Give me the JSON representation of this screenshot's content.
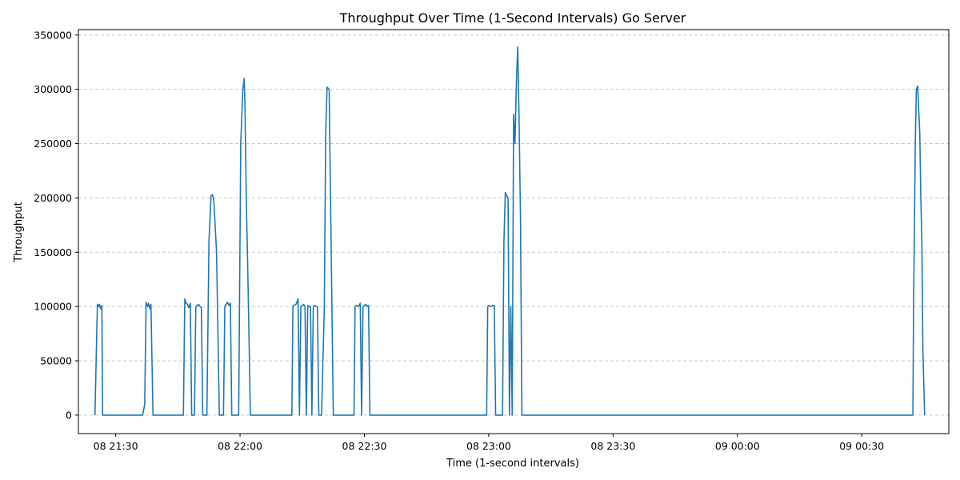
{
  "chart_data": {
    "type": "line",
    "title": "Throughput Over Time (1-Second Intervals) Go Server",
    "xlabel": "Time (1-second intervals)",
    "ylabel": "Throughput",
    "xlim": [
      "08 21:21",
      "09 00:51"
    ],
    "ylim": [
      -17000,
      355000
    ],
    "x_ticks": [
      "08 21:30",
      "08 22:00",
      "08 22:30",
      "08 23:00",
      "08 23:30",
      "09 00:00",
      "09 00:30"
    ],
    "y_ticks": [
      0,
      50000,
      100000,
      150000,
      200000,
      250000,
      300000,
      350000
    ],
    "grid": "y-dashed",
    "series": [
      {
        "color": "#1f77b4",
        "x": [
          "08 21:25:00",
          "08 21:25:20",
          "08 21:25:35",
          "08 21:25:50",
          "08 21:26:05",
          "08 21:26:20",
          "08 21:26:40",
          "08 21:26:50",
          "08 21:27:00",
          "08 21:36:30",
          "08 21:37:00",
          "08 21:37:20",
          "08 21:37:40",
          "08 21:37:55",
          "08 21:38:15",
          "08 21:38:30",
          "08 21:39:00",
          "08 21:46:00",
          "08 21:46:20",
          "08 21:46:40",
          "08 21:47:00",
          "08 21:47:20",
          "08 21:47:40",
          "08 21:48:00",
          "08 21:48:20",
          "08 21:49:00",
          "08 21:49:20",
          "08 21:49:40",
          "08 21:50:00",
          "08 21:50:20",
          "08 21:50:40",
          "08 21:51:00",
          "08 21:52:00",
          "08 21:52:30",
          "08 21:53:00",
          "08 21:53:20",
          "08 21:53:40",
          "08 21:54:20",
          "08 21:55:00",
          "08 21:56:00",
          "08 21:56:20",
          "08 21:56:40",
          "08 21:57:00",
          "08 21:57:20",
          "08 21:57:40",
          "08 21:58:00",
          "08 21:59:40",
          "08 22:00:10",
          "08 22:00:40",
          "08 22:01:00",
          "08 22:01:10",
          "08 22:01:30",
          "08 22:01:50",
          "08 22:02:30",
          "08 22:12:30",
          "08 22:12:45",
          "08 22:13:00",
          "08 22:13:30",
          "08 22:14:00",
          "08 22:14:20",
          "08 22:14:40",
          "08 22:15:00",
          "08 22:15:20",
          "08 22:15:40",
          "08 22:16:00",
          "08 22:16:20",
          "08 22:16:40",
          "08 22:17:00",
          "08 22:17:20",
          "08 22:17:40",
          "08 22:18:00",
          "08 22:18:20",
          "08 22:18:40",
          "08 22:19:00",
          "08 22:19:40",
          "08 22:20:20",
          "08 22:20:40",
          "08 22:21:00",
          "08 22:21:30",
          "08 22:22:00",
          "08 22:22:30",
          "08 22:27:30",
          "08 22:27:45",
          "08 22:28:00",
          "08 22:28:30",
          "08 22:29:00",
          "08 22:29:20",
          "08 22:29:40",
          "08 22:30:00",
          "08 22:30:20",
          "08 22:30:40",
          "08 22:31:00",
          "08 22:31:20",
          "08 22:31:40",
          "08 22:59:30",
          "08 22:59:45",
          "08 23:00:00",
          "08 23:00:30",
          "08 23:01:00",
          "08 23:01:20",
          "08 23:01:40",
          "08 23:03:20",
          "08 23:03:40",
          "08 23:04:00",
          "08 23:04:20",
          "08 23:04:40",
          "08 23:05:00",
          "08 23:05:20",
          "08 23:05:40",
          "08 23:06:00",
          "08 23:06:20",
          "08 23:06:40",
          "08 23:07:00",
          "08 23:07:20",
          "08 23:07:40",
          "08 23:08:00",
          "08 23:08:20",
          "08 23:08:40",
          "08 23:09:00",
          "08 23:09:20",
          "09 00:42:20",
          "09 00:42:30",
          "09 00:42:40",
          "09 00:42:55",
          "09 00:43:10",
          "09 00:43:30",
          "09 00:43:45",
          "09 00:44:00",
          "09 00:44:15",
          "09 00:44:30",
          "09 00:44:45",
          "09 00:45:10"
        ],
        "y": [
          0,
          60000,
          102000,
          100000,
          102000,
          98000,
          101000,
          0,
          0,
          0,
          10000,
          104000,
          100000,
          103000,
          98000,
          102000,
          0,
          0,
          0,
          107000,
          103000,
          102000,
          99000,
          103000,
          0,
          0,
          100000,
          101000,
          102000,
          100000,
          99000,
          0,
          0,
          160000,
          202000,
          203000,
          198000,
          150000,
          0,
          0,
          100000,
          102000,
          104000,
          101000,
          103000,
          0,
          0,
          250000,
          300000,
          310000,
          290000,
          200000,
          140000,
          0,
          0,
          100000,
          101000,
          102000,
          107000,
          0,
          100000,
          101000,
          102000,
          100000,
          0,
          101000,
          100000,
          100000,
          0,
          100000,
          101000,
          100000,
          100000,
          0,
          0,
          100000,
          260000,
          302000,
          300000,
          150000,
          0,
          0,
          100000,
          101000,
          100000,
          103000,
          0,
          100000,
          101000,
          102000,
          100000,
          101000,
          0,
          0,
          0,
          100000,
          101000,
          100000,
          101000,
          101000,
          0,
          0,
          160000,
          205000,
          202000,
          200000,
          0,
          100000,
          0,
          277000,
          250000,
          305000,
          339000,
          270000,
          180000,
          0,
          0,
          0,
          0,
          0,
          0,
          100000,
          160000,
          250000,
          300000,
          303000,
          280000,
          260000,
          200000,
          160000,
          60000,
          0
        ]
      }
    ]
  }
}
